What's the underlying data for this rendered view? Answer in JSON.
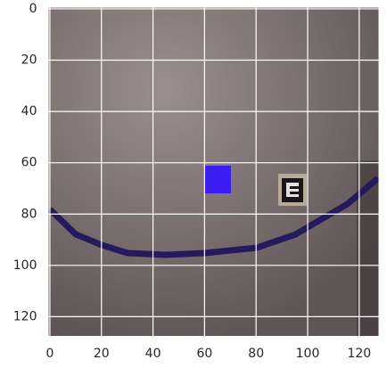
{
  "chart_data": {
    "type": "image",
    "xlim": [
      -0.5,
      127.5
    ],
    "ylim": [
      127.5,
      -0.5
    ],
    "xticks": [
      0,
      20,
      40,
      60,
      80,
      100,
      120
    ],
    "yticks": [
      0,
      20,
      40,
      60,
      80,
      100,
      120
    ],
    "grid": true
  }
}
